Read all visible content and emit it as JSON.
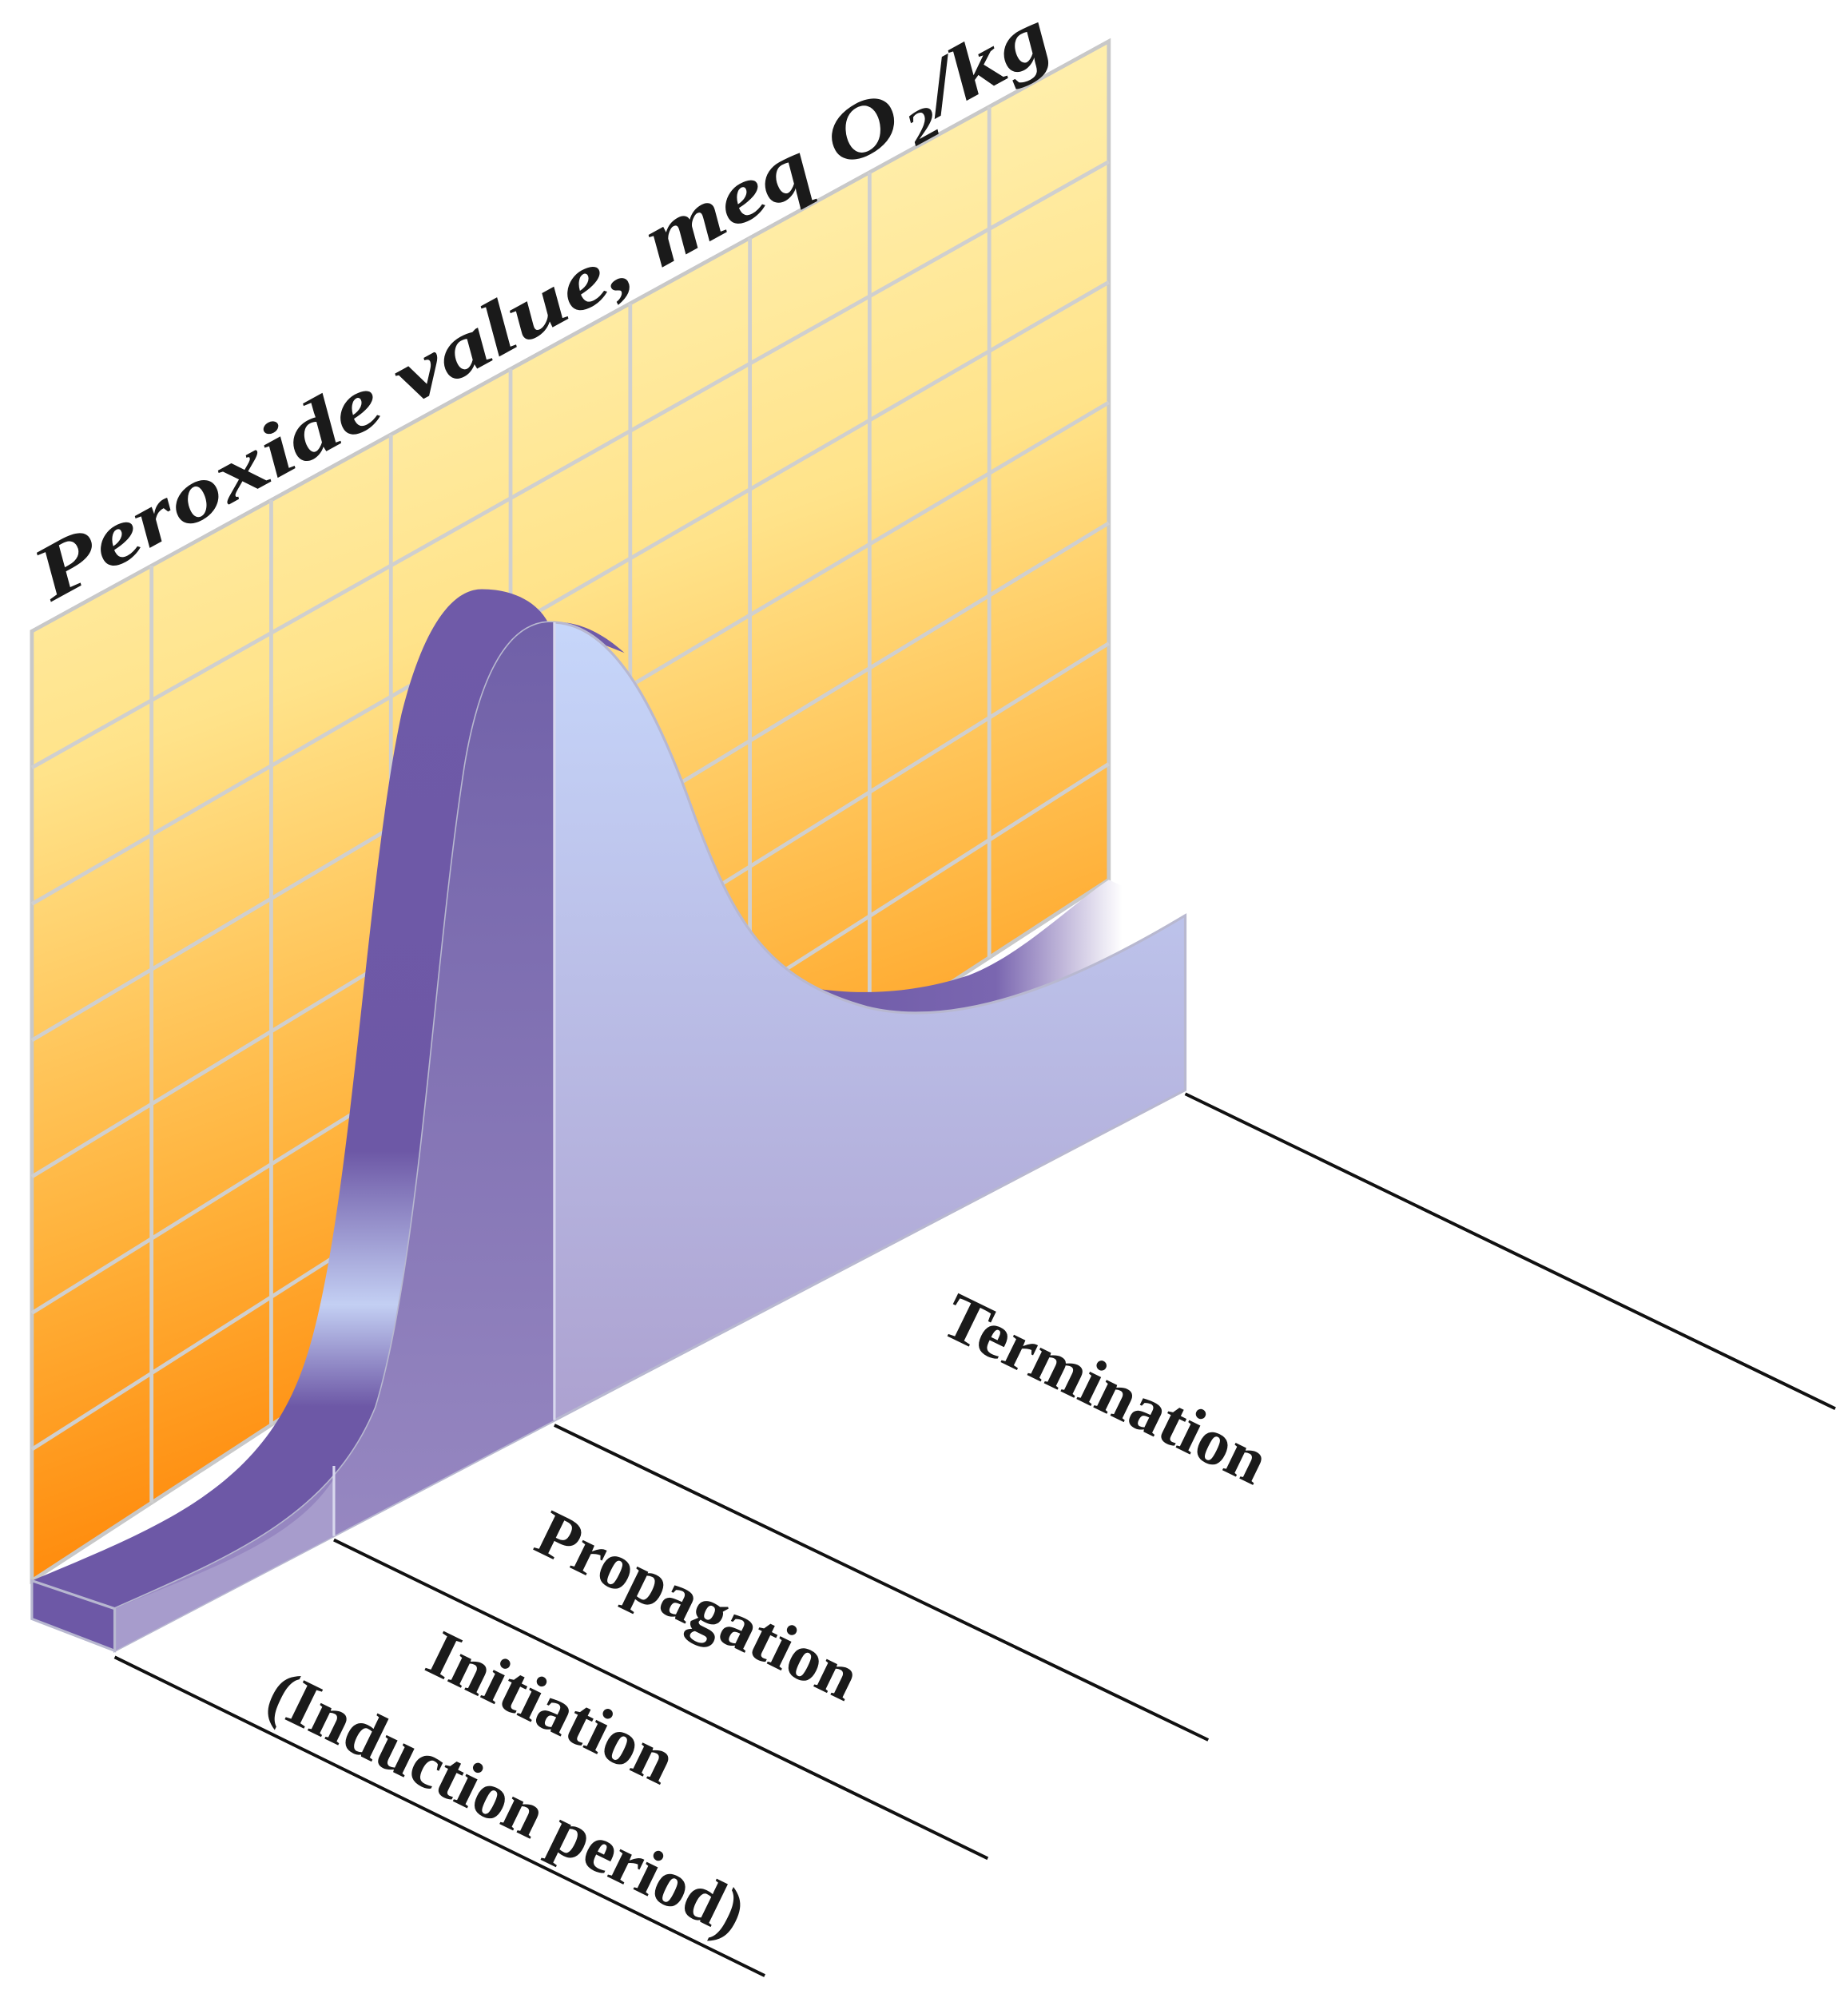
{
  "axis_label": "Peroxide value, meq O₂/kg",
  "phases": [
    {
      "label": "Initiation",
      "sublabel": "(Induction period)"
    },
    {
      "label": "Propagation"
    },
    {
      "label": "Termination"
    }
  ]
}
